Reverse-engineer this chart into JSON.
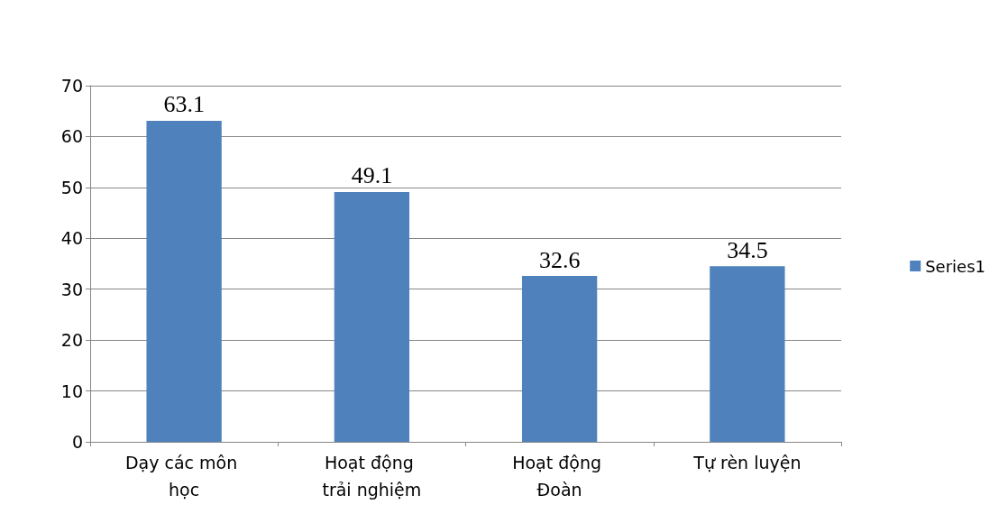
{
  "chart_data": {
    "type": "bar",
    "categories": [
      "Dạy các môn học",
      "Hoạt động trải nghiệm",
      "Hoạt động Đoàn",
      "Tự rèn luyện"
    ],
    "series": [
      {
        "name": "Series1",
        "color": "#4f81bd",
        "values": [
          63.1,
          49.1,
          32.6,
          34.5
        ]
      }
    ],
    "ylim": [
      0,
      70
    ],
    "yticks": [
      0,
      10,
      20,
      30,
      40,
      50,
      60,
      70
    ],
    "grid": "y",
    "legend": "right",
    "data_labels": true
  }
}
